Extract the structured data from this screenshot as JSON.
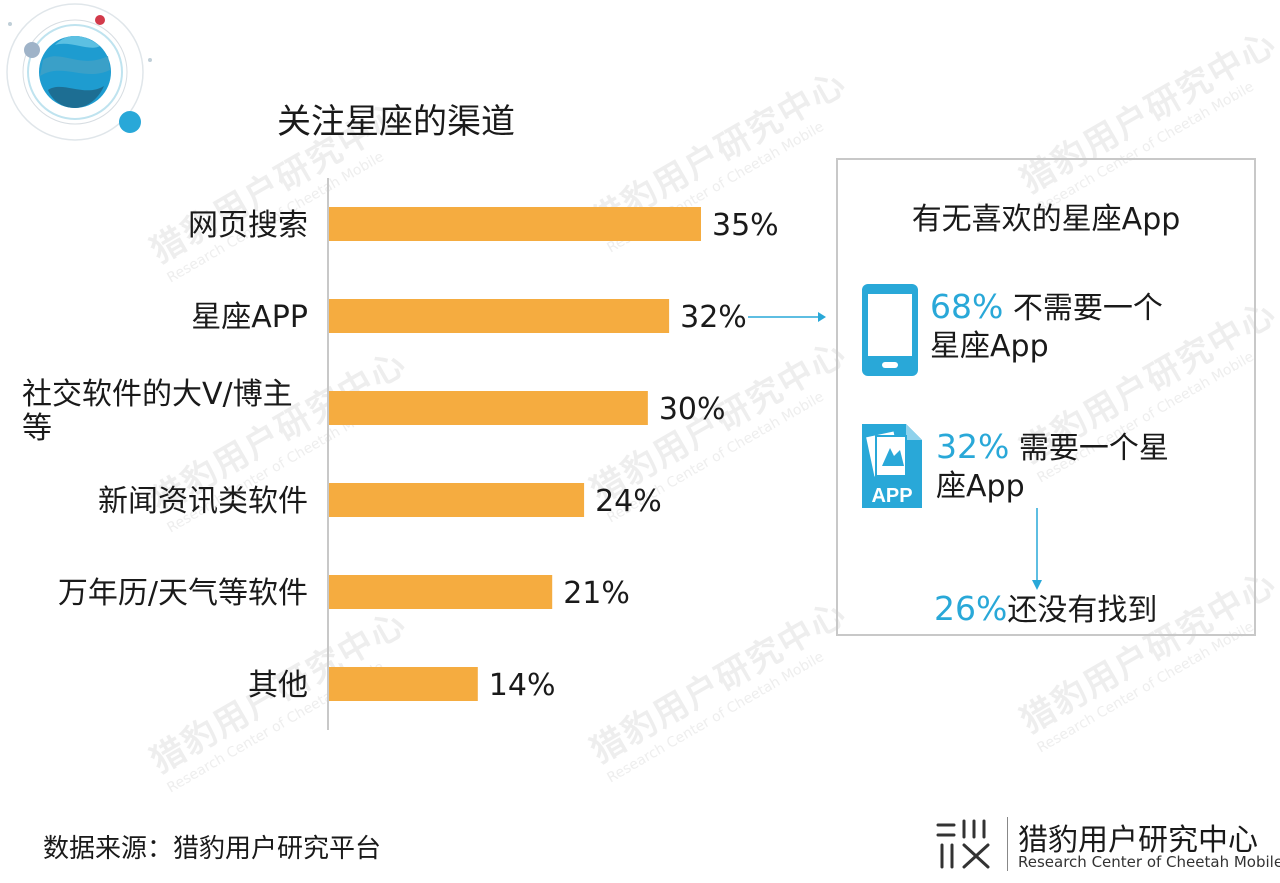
{
  "title": "关注星座的渠道",
  "chart_data": {
    "type": "bar",
    "orientation": "horizontal",
    "title": "关注星座的渠道",
    "categories": [
      "网页搜索",
      "星座APP",
      "社交软件的大V/博主等",
      "新闻资讯类软件",
      "万年历/天气等软件",
      "其他"
    ],
    "category_lines": [
      [
        "网页搜索"
      ],
      [
        "星座APP"
      ],
      [
        "社交软件的大V/博主",
        "等"
      ],
      [
        "新闻资讯类软件"
      ],
      [
        "万年历/天气等软件"
      ],
      [
        "其他"
      ]
    ],
    "values": [
      35,
      32,
      30,
      24,
      21,
      14
    ],
    "value_labels": [
      "35%",
      "32%",
      "30%",
      "24%",
      "21%",
      "14%"
    ],
    "unit": "%",
    "xlim": [
      0,
      35
    ],
    "grid": false,
    "legend": "none",
    "bar_color": "#f5ac40"
  },
  "panel": {
    "title": "有无喜欢的星座App",
    "no_need": {
      "pct": "68%",
      "text_1": " 不需要一个",
      "text_2": "星座App",
      "icon": "phone-icon"
    },
    "need": {
      "pct": "32%",
      "text_1": " 需要一个星",
      "text_2": "座App",
      "icon": "app-icon",
      "icon_text": "APP"
    },
    "not_found": {
      "pct": "26%",
      "text": "还没有找到"
    }
  },
  "source": "数据来源：猎豹用户研究平台",
  "brand": {
    "cn": "猎豹用户研究中心",
    "en": "Research Center of Cheetah Mobile"
  },
  "watermark": {
    "cn": "猎豹用户研究中心",
    "en": "Research Center of Cheetah Mobile"
  },
  "colors": {
    "accent": "#29a8d8",
    "bar": "#f5ac40",
    "axis": "#c8c8c8"
  }
}
